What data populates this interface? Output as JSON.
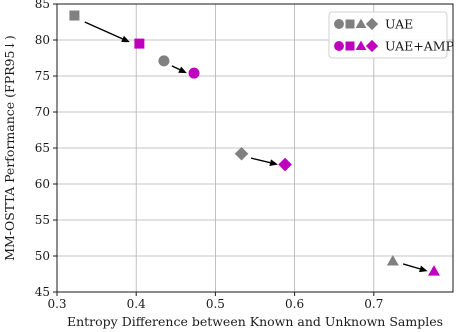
{
  "chart_data": {
    "type": "scatter",
    "xlabel": "Entropy Difference between Known and Unknown Samples",
    "ylabel": "MM-OSTTA Performance (FPR95↓)",
    "xlim": [
      0.3,
      0.8
    ],
    "ylim": [
      45,
      85
    ],
    "xticks": [
      0.3,
      0.4,
      0.5,
      0.6,
      0.7
    ],
    "yticks": [
      45,
      50,
      55,
      60,
      65,
      70,
      75,
      80,
      85
    ],
    "grid": true,
    "legend_position": "top-right",
    "series": [
      {
        "name": "UAE",
        "color": "#808080",
        "points": [
          {
            "x": 0.322,
            "y": 83.4,
            "marker": "square"
          },
          {
            "x": 0.435,
            "y": 77.1,
            "marker": "circle"
          },
          {
            "x": 0.533,
            "y": 64.2,
            "marker": "diamond"
          },
          {
            "x": 0.724,
            "y": 49.3,
            "marker": "triangle"
          }
        ]
      },
      {
        "name": "UAE+AMP",
        "color": "#bf00bf",
        "points": [
          {
            "x": 0.404,
            "y": 79.5,
            "marker": "square"
          },
          {
            "x": 0.473,
            "y": 75.4,
            "marker": "circle"
          },
          {
            "x": 0.588,
            "y": 62.7,
            "marker": "diamond"
          },
          {
            "x": 0.776,
            "y": 47.9,
            "marker": "triangle"
          }
        ]
      }
    ],
    "arrows": [
      {
        "from": [
          0.335,
          82.5
        ],
        "to": [
          0.392,
          79.7
        ]
      },
      {
        "from": [
          0.445,
          76.4
        ],
        "to": [
          0.464,
          75.4
        ]
      },
      {
        "from": [
          0.545,
          63.6
        ],
        "to": [
          0.579,
          62.7
        ]
      },
      {
        "from": [
          0.737,
          48.9
        ],
        "to": [
          0.768,
          47.9
        ]
      }
    ]
  }
}
